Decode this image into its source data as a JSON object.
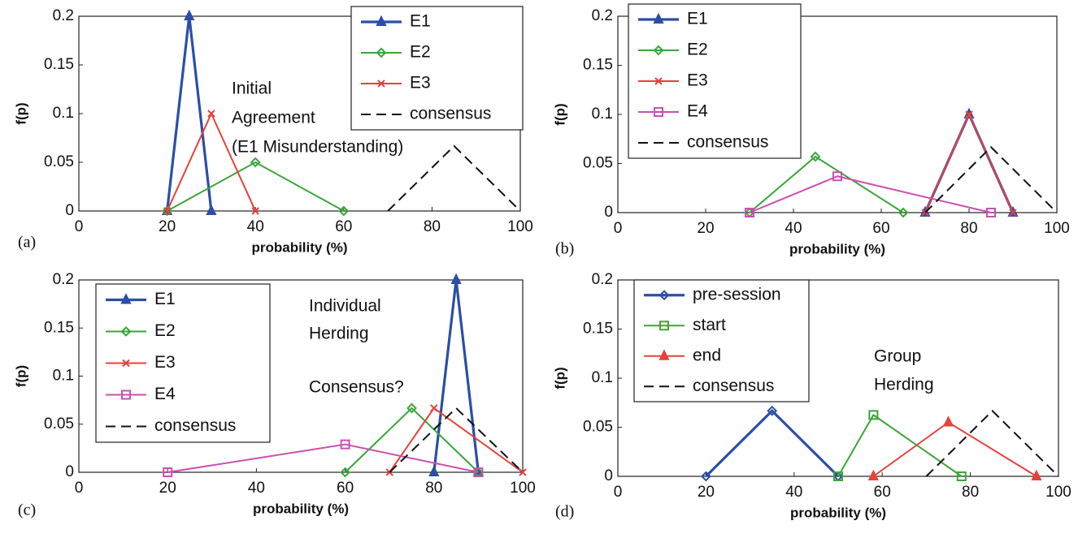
{
  "chart_data": [
    {
      "type": "line",
      "panel": "(a)",
      "xlabel": "probability (%)",
      "ylabel": "f(p)",
      "xlim": [
        0,
        100
      ],
      "xticks": [
        0,
        20,
        40,
        60,
        80,
        100
      ],
      "ylim": [
        0,
        0.2
      ],
      "yticks": [
        0,
        0.05,
        0.1,
        0.15,
        0.2
      ],
      "legend": "upper right",
      "annotations": [
        "Initial",
        "Agreement",
        "(E1 Misunderstanding)"
      ],
      "series": [
        {
          "name": "E1",
          "color": "#2b4ea8",
          "marker": "triangle",
          "linestyle": "solid",
          "x": [
            20,
            25,
            30
          ],
          "values": [
            0,
            0.2,
            0
          ]
        },
        {
          "name": "E2",
          "color": "#3aa63a",
          "marker": "diamond",
          "linestyle": "solid",
          "x": [
            20,
            40,
            60
          ],
          "values": [
            0,
            0.05,
            0
          ]
        },
        {
          "name": "E3",
          "color": "#e8403a",
          "marker": "x",
          "linestyle": "solid",
          "x": [
            20,
            30,
            40
          ],
          "values": [
            0,
            0.1,
            0
          ]
        },
        {
          "name": "consensus",
          "color": "#111111",
          "marker": "none",
          "linestyle": "dashed",
          "x": [
            70,
            85,
            100
          ],
          "values": [
            0,
            0.0667,
            0
          ]
        }
      ]
    },
    {
      "type": "line",
      "panel": "(b)",
      "xlabel": "probability (%)",
      "ylabel": "f(p)",
      "xlim": [
        0,
        100
      ],
      "xticks": [
        0,
        20,
        40,
        60,
        80,
        100
      ],
      "ylim": [
        0,
        0.2
      ],
      "yticks": [
        0,
        0.05,
        0.1,
        0.15,
        0.2
      ],
      "legend": "upper left",
      "annotations": [],
      "series": [
        {
          "name": "E1",
          "color": "#2b4ea8",
          "marker": "triangle",
          "linestyle": "solid",
          "x": [
            70,
            80,
            90
          ],
          "values": [
            0,
            0.1,
            0
          ]
        },
        {
          "name": "E2",
          "color": "#3aa63a",
          "marker": "diamond",
          "linestyle": "solid",
          "x": [
            30,
            45,
            65
          ],
          "values": [
            0,
            0.057,
            0
          ]
        },
        {
          "name": "E3",
          "color": "#e8403a",
          "marker": "x",
          "linestyle": "solid",
          "x": [
            70,
            80,
            90
          ],
          "values": [
            0,
            0.1,
            0
          ]
        },
        {
          "name": "E4",
          "color": "#cc4fb0",
          "marker": "square",
          "linestyle": "solid",
          "x": [
            30,
            50,
            85
          ],
          "values": [
            0,
            0.037,
            0
          ]
        },
        {
          "name": "consensus",
          "color": "#111111",
          "marker": "none",
          "linestyle": "dashed",
          "x": [
            70,
            85,
            100
          ],
          "values": [
            0,
            0.0667,
            0
          ]
        }
      ]
    },
    {
      "type": "line",
      "panel": "(c)",
      "xlabel": "probability (%)",
      "ylabel": "f(p)",
      "xlim": [
        0,
        100
      ],
      "xticks": [
        0,
        20,
        40,
        60,
        80,
        100
      ],
      "ylim": [
        0,
        0.2
      ],
      "yticks": [
        0,
        0.05,
        0.1,
        0.15,
        0.2
      ],
      "legend": "upper left",
      "annotations": [
        "Individual",
        "Herding",
        "Consensus?"
      ],
      "series": [
        {
          "name": "E1",
          "color": "#2b4ea8",
          "marker": "triangle",
          "linestyle": "solid",
          "x": [
            80,
            85,
            90
          ],
          "values": [
            0,
            0.2,
            0
          ]
        },
        {
          "name": "E2",
          "color": "#3aa63a",
          "marker": "diamond",
          "linestyle": "solid",
          "x": [
            60,
            75,
            90
          ],
          "values": [
            0,
            0.0667,
            0
          ]
        },
        {
          "name": "E3",
          "color": "#e8403a",
          "marker": "x",
          "linestyle": "solid",
          "x": [
            70,
            80,
            100
          ],
          "values": [
            0,
            0.0667,
            0
          ]
        },
        {
          "name": "E4",
          "color": "#cc4fb0",
          "marker": "square",
          "linestyle": "solid",
          "x": [
            20,
            60,
            90
          ],
          "values": [
            0,
            0.029,
            0
          ]
        },
        {
          "name": "consensus",
          "color": "#111111",
          "marker": "none",
          "linestyle": "dashed",
          "x": [
            70,
            85,
            100
          ],
          "values": [
            0,
            0.0667,
            0
          ]
        }
      ]
    },
    {
      "type": "line",
      "panel": "(d)",
      "xlabel": "probability (%)",
      "ylabel": "f(p)",
      "xlim": [
        0,
        100
      ],
      "xticks": [
        0,
        20,
        40,
        60,
        80,
        100
      ],
      "ylim": [
        0,
        0.2
      ],
      "yticks": [
        0,
        0.05,
        0.1,
        0.15,
        0.2
      ],
      "legend": "upper left",
      "annotations": [
        "Group",
        "Herding"
      ],
      "series": [
        {
          "name": "pre-session",
          "color": "#2b4ea8",
          "marker": "diamond",
          "linestyle": "solid",
          "x": [
            20,
            35,
            50
          ],
          "values": [
            0,
            0.0667,
            0
          ]
        },
        {
          "name": "start",
          "color": "#3aa63a",
          "marker": "square",
          "linestyle": "solid",
          "x": [
            50,
            58,
            78
          ],
          "values": [
            0,
            0.0625,
            0
          ]
        },
        {
          "name": "end",
          "color": "#e8403a",
          "marker": "triangle",
          "linestyle": "solid",
          "x": [
            58,
            75,
            95
          ],
          "values": [
            0,
            0.055,
            0
          ]
        },
        {
          "name": "consensus",
          "color": "#111111",
          "marker": "none",
          "linestyle": "dashed",
          "x": [
            70,
            85,
            100
          ],
          "values": [
            0,
            0.0667,
            0
          ]
        }
      ]
    }
  ]
}
